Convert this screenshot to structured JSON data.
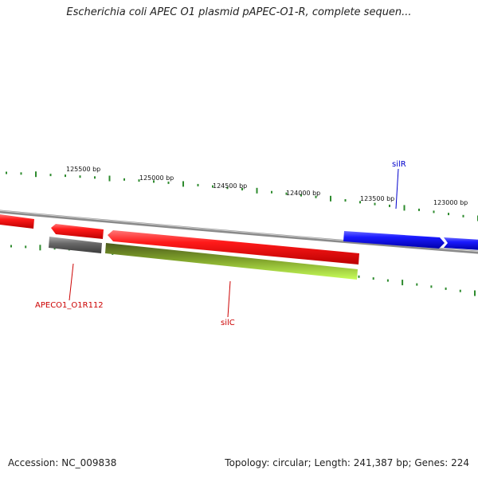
{
  "title": "Escherichia coli APEC O1 plasmid pAPEC-O1-R, complete sequen...",
  "footer": {
    "accession": "Accession: NC_009838",
    "summary": "Topology: circular; Length: 241,387 bp; Genes: 224"
  },
  "ticks": [
    {
      "label": "125500 bp"
    },
    {
      "label": "125000 bp"
    },
    {
      "label": "124500 bp"
    },
    {
      "label": "124000 bp"
    },
    {
      "label": "123500 bp"
    },
    {
      "label": "123000 bp"
    }
  ],
  "gene_labels": {
    "silR": "silR",
    "apec": "APECO1_O1R112",
    "silC": "silC"
  },
  "colors": {
    "forward_gene": "#0000dd",
    "reverse_gene": "#ee0000",
    "pseudo_gene": "#666666",
    "cds_feature": "#88cc22",
    "ticks": "#2e8b2e",
    "backbone": "#888888"
  }
}
